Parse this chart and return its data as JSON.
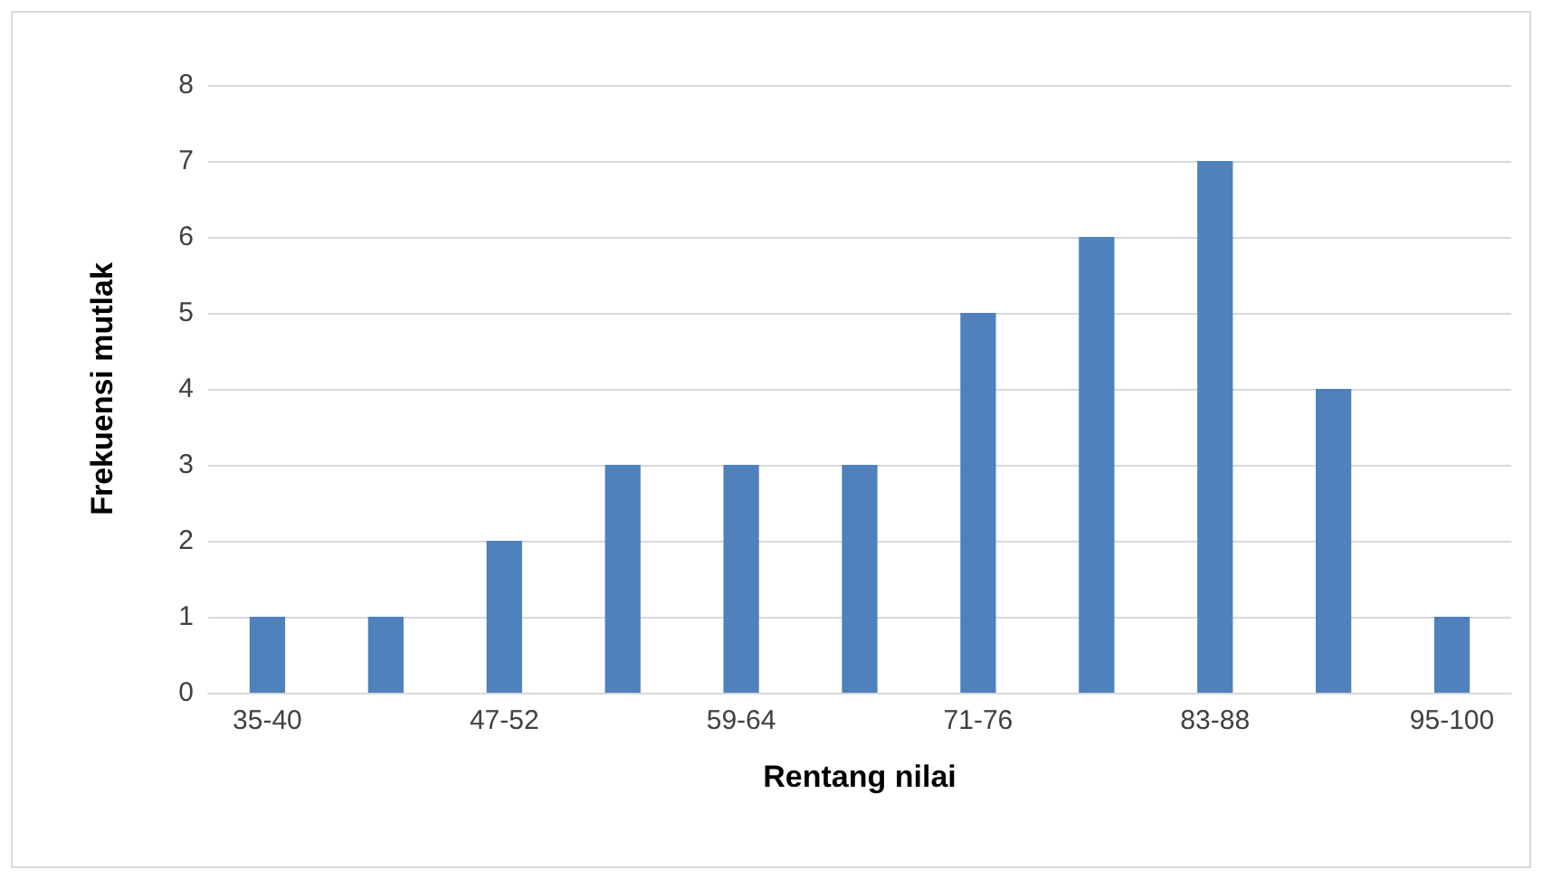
{
  "chart_data": {
    "type": "bar",
    "xlabel": "Rentang nilai",
    "ylabel": "Frekuensi mutlak",
    "categories": [
      "35-40",
      null,
      "47-52",
      null,
      "59-64",
      null,
      "71-76",
      null,
      "83-88",
      null,
      "95-100"
    ],
    "values": [
      1,
      1,
      2,
      3,
      3,
      3,
      5,
      6,
      7,
      4,
      1
    ],
    "color": "#4f81bd",
    "ylim": [
      0,
      8
    ],
    "yticks": [
      0,
      1,
      2,
      3,
      4,
      5,
      6,
      7,
      8
    ],
    "grid": "y"
  }
}
